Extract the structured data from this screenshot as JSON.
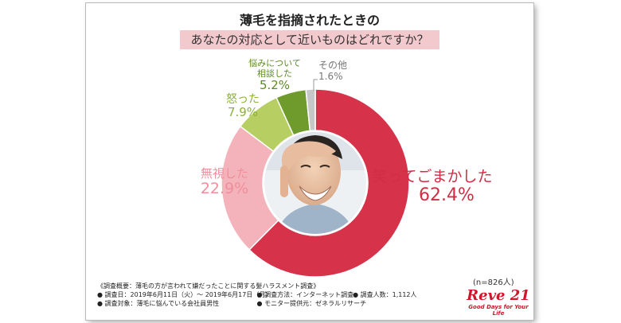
{
  "title": {
    "line1": "薄毛を指摘されたときの",
    "line2": "あなたの対応として近いものはどれですか？"
  },
  "chart_data": {
    "type": "pie",
    "donut": true,
    "slices": [
      {
        "label": "笑ってごまかした",
        "value": 62.4,
        "display": "62.4%",
        "color": "#d6334a"
      },
      {
        "label": "無視した",
        "value": 22.9,
        "display": "22.9%",
        "color": "#f4b3ba"
      },
      {
        "label": "怒った",
        "value": 7.9,
        "display": "7.9%",
        "color": "#b6ce62"
      },
      {
        "label": "悩みについて相談した",
        "value": 5.2,
        "display": "5.2%",
        "color": "#6f9a2c"
      },
      {
        "label": "その他",
        "value": 1.6,
        "display": "1.6%",
        "color": "#c7c7c7"
      }
    ],
    "label_lines": {
      "consult": [
        "悩みについて",
        "相談した"
      ]
    },
    "label_colors": {
      "main": "#cf2e45",
      "pink": "#ee8f9b",
      "green": "#8bb13a",
      "dark_green": "#5d8a22",
      "gray": "#777777"
    },
    "center_image": "smiling-man-photo"
  },
  "sample": "(n=826人)",
  "survey": {
    "overview": "《調査概要：薄毛の方が言われて嫌だったことに関する髪ハラスメント調査》",
    "period": "● 調査日：2019年6月11日（火）〜 2019年6月17日（月）",
    "method": "● 調査方法：インターネット調査",
    "count": "● 調査人数：1,112人",
    "target": "● 調査対象：薄毛に悩んでいる会社員男性",
    "panel": "● モニター提供元：ゼネラルリサーチ"
  },
  "logo": {
    "brand": "Reve 21",
    "tagline": "Good Days for Your Life"
  }
}
